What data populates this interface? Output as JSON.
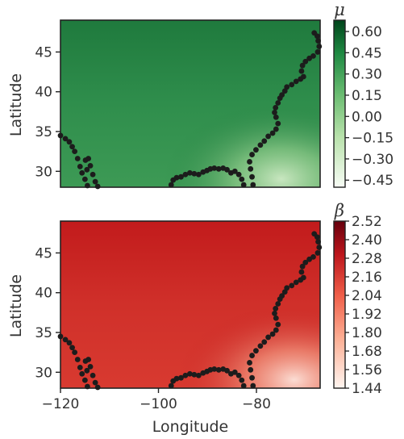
{
  "chart_data": [
    {
      "type": "heatmap",
      "panel": "top",
      "colormap": "Greens",
      "colorbar_label": "μ",
      "colorbar_ticks": [
        "0.60",
        "0.45",
        "0.30",
        "0.15",
        "0.00",
        "−0.15",
        "−0.30",
        "−0.45"
      ],
      "colorbar_range": [
        -0.5,
        0.68
      ],
      "ylabel": "Latitude",
      "y_ticks": [
        "45",
        "40",
        "35",
        "30"
      ],
      "xlim": [
        -120,
        -67
      ],
      "ylim": [
        28,
        49
      ],
      "grid": false
    },
    {
      "type": "heatmap",
      "panel": "bottom",
      "colormap": "Reds",
      "colorbar_label": "β",
      "colorbar_ticks": [
        "2.52",
        "2.40",
        "2.28",
        "2.16",
        "2.04",
        "1.92",
        "1.80",
        "1.68",
        "1.56",
        "1.44"
      ],
      "colorbar_range": [
        1.44,
        2.52
      ],
      "ylabel": "Latitude",
      "xlabel": "Longitude",
      "y_ticks": [
        "45",
        "40",
        "35",
        "30"
      ],
      "x_ticks": [
        "−120",
        "−100",
        "−80"
      ],
      "xlim": [
        -120,
        -67
      ],
      "ylim": [
        28,
        49
      ],
      "grid": false
    }
  ],
  "coastline_points": [
    [
      -120,
      34.5
    ],
    [
      -119,
      34.1
    ],
    [
      -118.2,
      33.7
    ],
    [
      -117.6,
      33.1
    ],
    [
      -117.1,
      32.5
    ],
    [
      -116.5,
      31.6
    ],
    [
      -116,
      30.6
    ],
    [
      -115.6,
      29.8
    ],
    [
      -115,
      29
    ],
    [
      -114.5,
      28.2
    ],
    [
      -114.6,
      30.2
    ],
    [
      -114.9,
      31.4
    ],
    [
      -114.3,
      31.6
    ],
    [
      -113.9,
      30.7
    ],
    [
      -113.4,
      29.6
    ],
    [
      -112.9,
      28.7
    ],
    [
      -112.4,
      28.1
    ],
    [
      -97.4,
      28.3
    ],
    [
      -97,
      28.9
    ],
    [
      -96.3,
      29.2
    ],
    [
      -95.4,
      29.3
    ],
    [
      -94.5,
      29.6
    ],
    [
      -93.6,
      29.8
    ],
    [
      -92.7,
      29.7
    ],
    [
      -91.8,
      29.6
    ],
    [
      -90.9,
      29.9
    ],
    [
      -90.1,
      30.1
    ],
    [
      -89.4,
      30.3
    ],
    [
      -88.6,
      30.4
    ],
    [
      -87.7,
      30.3
    ],
    [
      -86.8,
      30.4
    ],
    [
      -86,
      30.2
    ],
    [
      -85.2,
      29.8
    ],
    [
      -84.4,
      30
    ],
    [
      -83.6,
      29.6
    ],
    [
      -83,
      29
    ],
    [
      -82.6,
      28.3
    ],
    [
      -80.7,
      28.3
    ],
    [
      -80.9,
      29.3
    ],
    [
      -81.2,
      30.3
    ],
    [
      -81.4,
      31.2
    ],
    [
      -80.9,
      32.1
    ],
    [
      -80.1,
      32.7
    ],
    [
      -79.2,
      33.3
    ],
    [
      -78.4,
      33.8
    ],
    [
      -77.6,
      34.4
    ],
    [
      -76.7,
      34.8
    ],
    [
      -76,
      35.3
    ],
    [
      -75.6,
      36
    ],
    [
      -76,
      36.8
    ],
    [
      -76.3,
      37.4
    ],
    [
      -76.1,
      38
    ],
    [
      -75.6,
      38.6
    ],
    [
      -75.2,
      39.2
    ],
    [
      -74.8,
      39.6
    ],
    [
      -74.2,
      40.1
    ],
    [
      -73.8,
      40.6
    ],
    [
      -72.8,
      40.9
    ],
    [
      -71.9,
      41.3
    ],
    [
      -71,
      41.6
    ],
    [
      -70.4,
      41.9
    ],
    [
      -70.8,
      42.6
    ],
    [
      -70.6,
      43.3
    ],
    [
      -70,
      43.8
    ],
    [
      -69.2,
      44.2
    ],
    [
      -68.4,
      44.5
    ],
    [
      -67.5,
      45
    ],
    [
      -67.2,
      45.7
    ],
    [
      -67.4,
      46.4
    ],
    [
      -67.6,
      47
    ],
    [
      -68.2,
      47.4
    ]
  ]
}
